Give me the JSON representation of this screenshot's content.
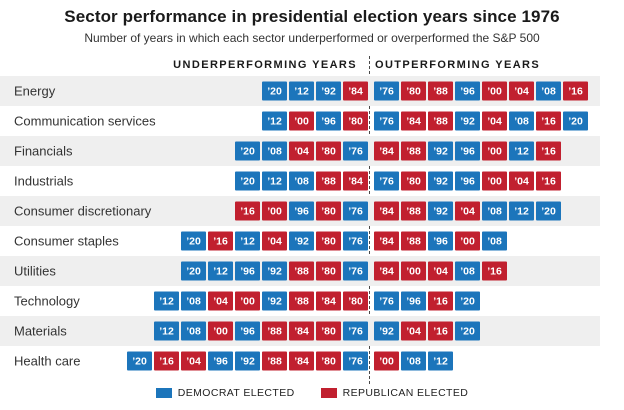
{
  "title": "Sector performance in presidential election years since 1976",
  "subtitle": "Number of years in which each sector underperformed or overperformed the S&P 500",
  "columns": {
    "underperforming": "UNDERPERFORMING YEARS",
    "outperforming": "OUTPERFORMING YEARS"
  },
  "legend": [
    {
      "label": "DEMOCRAT ELECTED",
      "party": "democrat"
    },
    {
      "label": "REPUBLICAN ELECTED",
      "party": "republican"
    }
  ],
  "colors": {
    "democrat": "#1c75bb",
    "republican": "#c1202f",
    "row_stripe": "#efefef",
    "divider": "#4a4a4a"
  },
  "year_prefix": "’",
  "party_by_year": {
    "76": "D",
    "80": "R",
    "84": "R",
    "88": "R",
    "92": "D",
    "96": "D",
    "00": "R",
    "04": "R",
    "08": "D",
    "12": "D",
    "16": "R",
    "20": "D"
  },
  "chart_data": {
    "type": "table",
    "title": "Sector performance in presidential election years since 1976",
    "subtitle": "Number of years in which each sector underperformed or overperformed the S&P 500",
    "legend_position": "bottom",
    "columns": [
      "sector",
      "underperforming_years",
      "outperforming_years"
    ],
    "rows": [
      {
        "sector": "Energy",
        "underperforming": [
          "20",
          "12",
          "92",
          "84"
        ],
        "outperforming": [
          "76",
          "80",
          "88",
          "96",
          "00",
          "04",
          "08",
          "16"
        ]
      },
      {
        "sector": "Communication services",
        "underperforming": [
          "12",
          "00",
          "96",
          "80"
        ],
        "outperforming": [
          "76",
          "84",
          "88",
          "92",
          "04",
          "08",
          "16",
          "20"
        ]
      },
      {
        "sector": "Financials",
        "underperforming": [
          "20",
          "08",
          "04",
          "80",
          "76"
        ],
        "outperforming": [
          "84",
          "88",
          "92",
          "96",
          "00",
          "12",
          "16"
        ]
      },
      {
        "sector": "Industrials",
        "underperforming": [
          "20",
          "12",
          "08",
          "88",
          "84"
        ],
        "outperforming": [
          "76",
          "80",
          "92",
          "96",
          "00",
          "04",
          "16"
        ]
      },
      {
        "sector": "Consumer discretionary",
        "underperforming": [
          "16",
          "00",
          "96",
          "80",
          "76"
        ],
        "outperforming": [
          "84",
          "88",
          "92",
          "04",
          "08",
          "12",
          "20"
        ]
      },
      {
        "sector": "Consumer staples",
        "underperforming": [
          "20",
          "16",
          "12",
          "04",
          "92",
          "80",
          "76"
        ],
        "outperforming": [
          "84",
          "88",
          "96",
          "00",
          "08"
        ]
      },
      {
        "sector": "Utilities",
        "underperforming": [
          "20",
          "12",
          "96",
          "92",
          "88",
          "80",
          "76"
        ],
        "outperforming": [
          "84",
          "00",
          "04",
          "08",
          "16"
        ]
      },
      {
        "sector": "Technology",
        "underperforming": [
          "12",
          "08",
          "04",
          "00",
          "92",
          "88",
          "84",
          "80"
        ],
        "outperforming": [
          "76",
          "96",
          "16",
          "20"
        ]
      },
      {
        "sector": "Materials",
        "underperforming": [
          "12",
          "08",
          "00",
          "96",
          "88",
          "84",
          "80",
          "76"
        ],
        "outperforming": [
          "92",
          "04",
          "16",
          "20"
        ]
      },
      {
        "sector": "Health care",
        "underperforming": [
          "20",
          "16",
          "04",
          "96",
          "92",
          "88",
          "84",
          "80",
          "76"
        ],
        "outperforming": [
          "00",
          "08",
          "12"
        ]
      }
    ]
  }
}
